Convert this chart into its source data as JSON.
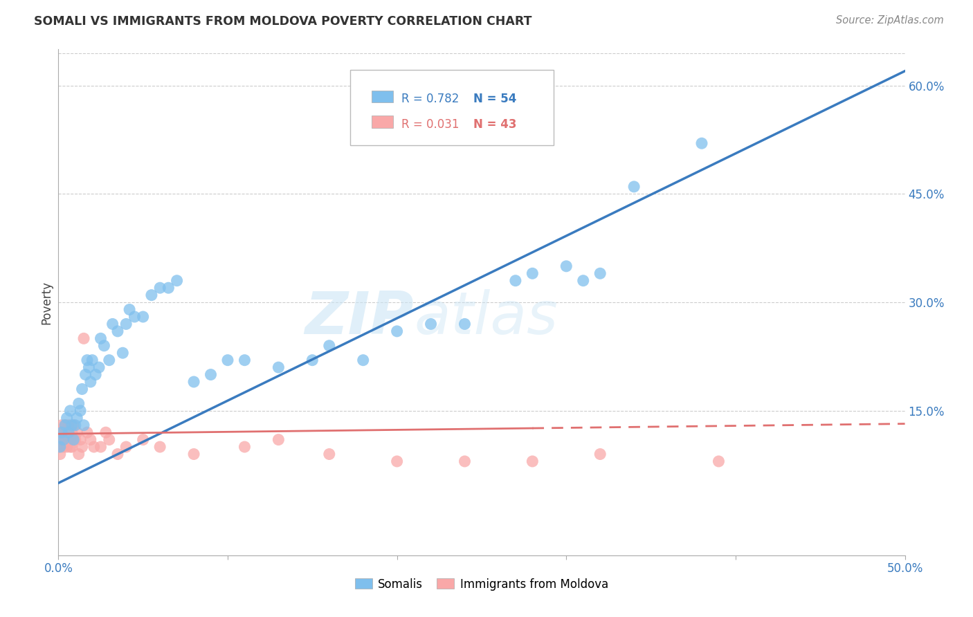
{
  "title": "SOMALI VS IMMIGRANTS FROM MOLDOVA POVERTY CORRELATION CHART",
  "source": "Source: ZipAtlas.com",
  "ylabel": "Poverty",
  "yticks": [
    "60.0%",
    "45.0%",
    "30.0%",
    "15.0%"
  ],
  "ytick_vals": [
    0.6,
    0.45,
    0.3,
    0.15
  ],
  "xlim": [
    0.0,
    0.5
  ],
  "ylim": [
    -0.05,
    0.65
  ],
  "watermark_zip": "ZIP",
  "watermark_atlas": "atlas",
  "legend_label1": "Somalis",
  "legend_label2": "Immigrants from Moldova",
  "somali_color": "#7fbfed",
  "moldova_color": "#f9a8a8",
  "somali_line_color": "#3a7bbf",
  "moldova_line_color": "#e07070",
  "somali_x": [
    0.001,
    0.002,
    0.003,
    0.004,
    0.005,
    0.006,
    0.007,
    0.008,
    0.009,
    0.01,
    0.011,
    0.012,
    0.013,
    0.014,
    0.015,
    0.016,
    0.017,
    0.018,
    0.019,
    0.02,
    0.022,
    0.024,
    0.025,
    0.027,
    0.03,
    0.032,
    0.035,
    0.038,
    0.04,
    0.042,
    0.045,
    0.05,
    0.055,
    0.06,
    0.065,
    0.07,
    0.08,
    0.09,
    0.1,
    0.11,
    0.13,
    0.15,
    0.16,
    0.18,
    0.2,
    0.22,
    0.24,
    0.27,
    0.28,
    0.3,
    0.31,
    0.32,
    0.34,
    0.38
  ],
  "somali_y": [
    0.1,
    0.12,
    0.11,
    0.13,
    0.14,
    0.12,
    0.15,
    0.13,
    0.11,
    0.13,
    0.14,
    0.16,
    0.15,
    0.18,
    0.13,
    0.2,
    0.22,
    0.21,
    0.19,
    0.22,
    0.2,
    0.21,
    0.25,
    0.24,
    0.22,
    0.27,
    0.26,
    0.23,
    0.27,
    0.29,
    0.28,
    0.28,
    0.31,
    0.32,
    0.32,
    0.33,
    0.19,
    0.2,
    0.22,
    0.22,
    0.21,
    0.22,
    0.24,
    0.22,
    0.26,
    0.27,
    0.27,
    0.33,
    0.34,
    0.35,
    0.33,
    0.34,
    0.46,
    0.52
  ],
  "moldova_x": [
    0.0,
    0.001,
    0.001,
    0.002,
    0.002,
    0.003,
    0.003,
    0.004,
    0.004,
    0.005,
    0.005,
    0.006,
    0.006,
    0.007,
    0.007,
    0.008,
    0.008,
    0.009,
    0.01,
    0.011,
    0.012,
    0.013,
    0.014,
    0.015,
    0.017,
    0.019,
    0.021,
    0.025,
    0.028,
    0.03,
    0.035,
    0.04,
    0.05,
    0.06,
    0.08,
    0.11,
    0.13,
    0.16,
    0.2,
    0.24,
    0.28,
    0.32,
    0.39
  ],
  "moldova_y": [
    0.1,
    0.12,
    0.09,
    0.11,
    0.13,
    0.1,
    0.12,
    0.11,
    0.13,
    0.1,
    0.12,
    0.11,
    0.13,
    0.1,
    0.11,
    0.12,
    0.1,
    0.13,
    0.11,
    0.12,
    0.09,
    0.11,
    0.1,
    0.25,
    0.12,
    0.11,
    0.1,
    0.1,
    0.12,
    0.11,
    0.09,
    0.1,
    0.11,
    0.1,
    0.09,
    0.1,
    0.11,
    0.09,
    0.08,
    0.08,
    0.08,
    0.09,
    0.08
  ]
}
